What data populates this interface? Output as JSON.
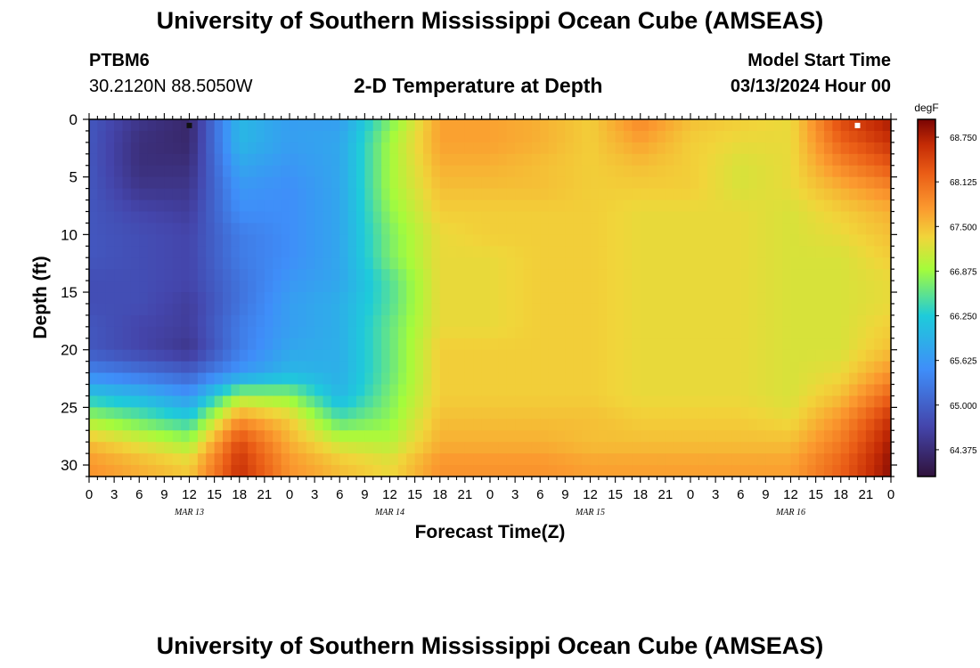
{
  "page": {
    "title": "University of Southern Mississippi Ocean Cube (AMSEAS)",
    "footer_title": "University of Southern Mississippi Ocean Cube (AMSEAS)"
  },
  "station": {
    "id": "PTBM6",
    "coords": "30.2120N  88.5050W"
  },
  "model": {
    "label": "Model Start Time",
    "start": "03/13/2024 Hour 00"
  },
  "chart_data": {
    "type": "heatmap",
    "title": "2-D Temperature at Depth",
    "xlabel": "Forecast Time(Z)",
    "ylabel": "Depth (ft)",
    "x_hours": [
      0,
      96
    ],
    "ylim": [
      0,
      31
    ],
    "y_ticks": [
      0,
      5,
      10,
      15,
      20,
      25,
      30
    ],
    "x_tick_labels": [
      "0",
      "3",
      "6",
      "9",
      "12",
      "15",
      "18",
      "21",
      "0",
      "3",
      "6",
      "9",
      "12",
      "15",
      "18",
      "21",
      "0",
      "3",
      "6",
      "9",
      "12",
      "15",
      "18",
      "21",
      "0",
      "3",
      "6",
      "9",
      "12",
      "15",
      "18",
      "21",
      "0"
    ],
    "date_labels": [
      {
        "hour": 12,
        "label": "MAR 13"
      },
      {
        "hour": 36,
        "label": "MAR 14"
      },
      {
        "hour": 60,
        "label": "MAR 15"
      },
      {
        "hour": 84,
        "label": "MAR 16"
      }
    ],
    "colorbar": {
      "unit": "degF",
      "min": 64.0,
      "max": 69.0,
      "ticks": [
        "68.750",
        "68.125",
        "67.500",
        "66.875",
        "66.250",
        "65.625",
        "65.000",
        "64.375"
      ]
    },
    "markers": [
      {
        "hour": 12,
        "depth": 0.3,
        "color": "#111111"
      },
      {
        "hour": 92,
        "depth": 0.3,
        "color": "#ffffff"
      }
    ],
    "grid_hours": [
      0,
      6,
      12,
      18,
      24,
      30,
      36,
      42,
      48,
      54,
      60,
      66,
      72,
      78,
      84,
      90,
      96
    ],
    "grid_depths": [
      0,
      2,
      4,
      6,
      8,
      10,
      12,
      14,
      16,
      18,
      20,
      22,
      24,
      26,
      28,
      30
    ],
    "temperature_degF": [
      [
        64.9,
        64.5,
        64.3,
        66.0,
        65.7,
        65.7,
        66.7,
        67.7,
        67.7,
        67.6,
        67.4,
        67.9,
        67.5,
        67.4,
        67.3,
        68.4,
        68.8
      ],
      [
        64.9,
        64.4,
        64.3,
        66.0,
        65.7,
        65.8,
        66.9,
        67.7,
        67.7,
        67.6,
        67.4,
        67.7,
        67.4,
        67.3,
        67.3,
        68.2,
        68.6
      ],
      [
        64.9,
        64.4,
        64.4,
        65.8,
        65.6,
        65.8,
        66.9,
        67.6,
        67.6,
        67.5,
        67.4,
        67.5,
        67.4,
        67.2,
        67.3,
        67.9,
        68.3
      ],
      [
        64.9,
        64.5,
        64.5,
        65.6,
        65.5,
        65.8,
        66.9,
        67.5,
        67.5,
        67.5,
        67.4,
        67.4,
        67.4,
        67.2,
        67.3,
        67.6,
        67.9
      ],
      [
        64.9,
        64.7,
        64.6,
        65.5,
        65.5,
        65.8,
        66.8,
        67.4,
        67.4,
        67.4,
        67.4,
        67.3,
        67.3,
        67.3,
        67.2,
        67.4,
        67.6
      ],
      [
        64.9,
        64.8,
        64.7,
        65.3,
        65.5,
        65.8,
        66.7,
        67.3,
        67.4,
        67.4,
        67.4,
        67.3,
        67.3,
        67.3,
        67.2,
        67.3,
        67.5
      ],
      [
        64.9,
        64.8,
        64.7,
        65.3,
        65.5,
        65.8,
        66.7,
        67.3,
        67.3,
        67.4,
        67.4,
        67.3,
        67.3,
        67.3,
        67.2,
        67.2,
        67.4
      ],
      [
        64.8,
        64.8,
        64.7,
        65.2,
        65.6,
        65.8,
        66.5,
        67.3,
        67.3,
        67.4,
        67.4,
        67.3,
        67.3,
        67.3,
        67.2,
        67.2,
        67.3
      ],
      [
        64.8,
        64.8,
        64.6,
        65.2,
        65.7,
        65.9,
        66.5,
        67.3,
        67.3,
        67.4,
        67.4,
        67.3,
        67.3,
        67.3,
        67.2,
        67.2,
        67.3
      ],
      [
        64.9,
        64.7,
        64.6,
        65.3,
        65.7,
        65.9,
        66.6,
        67.3,
        67.3,
        67.4,
        67.4,
        67.3,
        67.3,
        67.3,
        67.2,
        67.2,
        67.4
      ],
      [
        64.9,
        64.7,
        64.5,
        65.3,
        65.8,
        65.9,
        66.6,
        67.4,
        67.4,
        67.4,
        67.4,
        67.3,
        67.3,
        67.3,
        67.2,
        67.2,
        67.5
      ],
      [
        65.4,
        65.2,
        65.0,
        65.6,
        66.0,
        65.9,
        66.6,
        67.4,
        67.4,
        67.4,
        67.4,
        67.3,
        67.3,
        67.3,
        67.2,
        67.3,
        67.8
      ],
      [
        66.2,
        66.0,
        65.6,
        66.9,
        66.8,
        66.0,
        66.7,
        67.4,
        67.4,
        67.4,
        67.4,
        67.3,
        67.3,
        67.3,
        67.2,
        67.5,
        68.2
      ],
      [
        66.9,
        66.6,
        66.3,
        67.8,
        67.4,
        66.5,
        66.8,
        67.5,
        67.5,
        67.5,
        67.5,
        67.4,
        67.4,
        67.4,
        67.3,
        67.8,
        68.6
      ],
      [
        67.5,
        67.2,
        66.9,
        68.4,
        67.6,
        67.1,
        67.0,
        67.6,
        67.6,
        67.6,
        67.5,
        67.5,
        67.5,
        67.5,
        67.5,
        68.0,
        68.8
      ],
      [
        67.8,
        67.6,
        67.4,
        68.6,
        67.8,
        67.5,
        67.3,
        67.8,
        67.8,
        67.8,
        67.7,
        67.7,
        67.7,
        67.7,
        67.7,
        68.2,
        68.9
      ]
    ]
  }
}
